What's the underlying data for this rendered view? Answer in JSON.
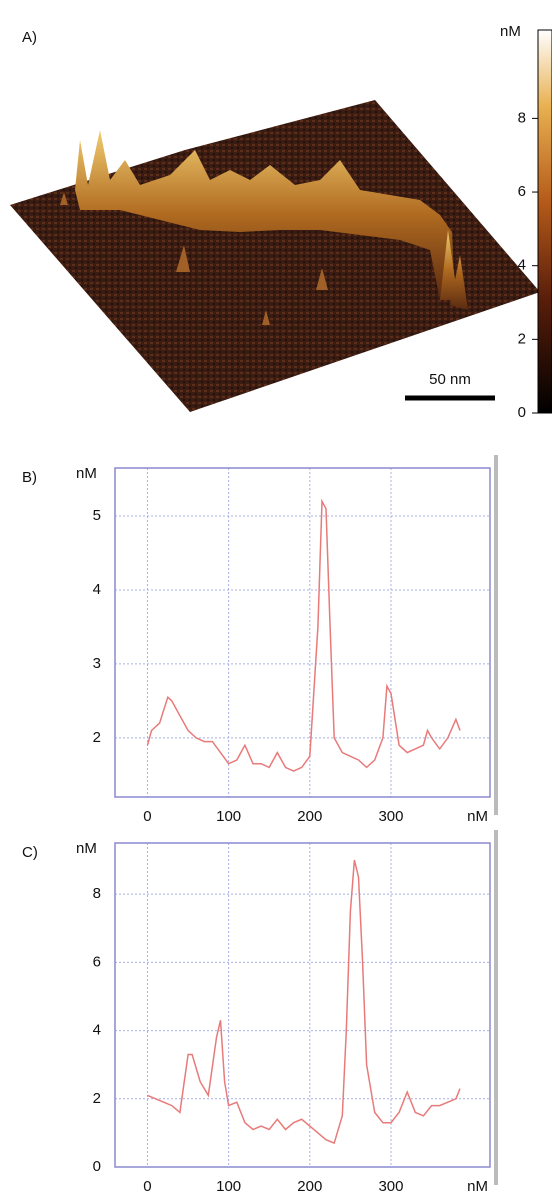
{
  "panel_a": {
    "panel_label": "A)",
    "scale_bar": "50 nm",
    "colorbar": {
      "label": "nM",
      "ylim": [
        0,
        10.4
      ],
      "yticks": [
        0,
        2,
        4,
        6,
        8
      ]
    }
  },
  "chart_data": [
    {
      "type": "line",
      "panel_label": "B)",
      "ylabel": "nM",
      "xlabel": "nM",
      "color": "#e87a7a",
      "grid": true,
      "xlim": [
        -40,
        422
      ],
      "ylim": [
        1.2,
        5.65
      ],
      "xticks": [
        0,
        100,
        200,
        300
      ],
      "yticks": [
        2,
        3,
        4,
        5
      ],
      "x": [
        0,
        5,
        15,
        25,
        30,
        40,
        50,
        60,
        70,
        80,
        90,
        100,
        110,
        120,
        130,
        140,
        150,
        160,
        170,
        180,
        190,
        200,
        210,
        215,
        220,
        225,
        230,
        240,
        250,
        260,
        270,
        280,
        290,
        295,
        300,
        310,
        320,
        330,
        340,
        345,
        350,
        360,
        370,
        380,
        385
      ],
      "values": [
        1.9,
        2.1,
        2.2,
        2.55,
        2.5,
        2.3,
        2.1,
        2.0,
        1.95,
        1.95,
        1.8,
        1.65,
        1.7,
        1.9,
        1.65,
        1.65,
        1.6,
        1.8,
        1.6,
        1.55,
        1.6,
        1.75,
        3.5,
        5.2,
        5.1,
        3.5,
        2.0,
        1.8,
        1.75,
        1.7,
        1.6,
        1.7,
        2.0,
        2.7,
        2.6,
        1.9,
        1.8,
        1.85,
        1.9,
        2.1,
        2.0,
        1.85,
        2.0,
        2.25,
        2.1
      ]
    },
    {
      "type": "line",
      "panel_label": "C)",
      "ylabel": "nM",
      "xlabel": "nM",
      "color": "#e87a7a",
      "grid": true,
      "xlim": [
        -40,
        422
      ],
      "ylim": [
        0,
        9.5
      ],
      "xticks": [
        0,
        100,
        200,
        300
      ],
      "yticks": [
        0,
        2,
        4,
        6,
        8
      ],
      "x": [
        0,
        10,
        20,
        30,
        40,
        50,
        55,
        65,
        75,
        85,
        90,
        95,
        100,
        110,
        120,
        130,
        140,
        150,
        160,
        170,
        180,
        190,
        200,
        210,
        220,
        230,
        240,
        245,
        250,
        255,
        260,
        265,
        270,
        280,
        290,
        300,
        310,
        320,
        330,
        340,
        350,
        360,
        370,
        380,
        385
      ],
      "values": [
        2.1,
        2.0,
        1.9,
        1.8,
        1.6,
        3.3,
        3.3,
        2.5,
        2.1,
        3.8,
        4.3,
        2.5,
        1.8,
        1.9,
        1.3,
        1.1,
        1.2,
        1.1,
        1.4,
        1.1,
        1.3,
        1.4,
        1.2,
        1.0,
        0.8,
        0.7,
        1.5,
        4.0,
        7.5,
        9.0,
        8.5,
        6.0,
        3.0,
        1.6,
        1.3,
        1.3,
        1.6,
        2.2,
        1.6,
        1.5,
        1.8,
        1.8,
        1.9,
        2.0,
        2.3
      ]
    }
  ]
}
